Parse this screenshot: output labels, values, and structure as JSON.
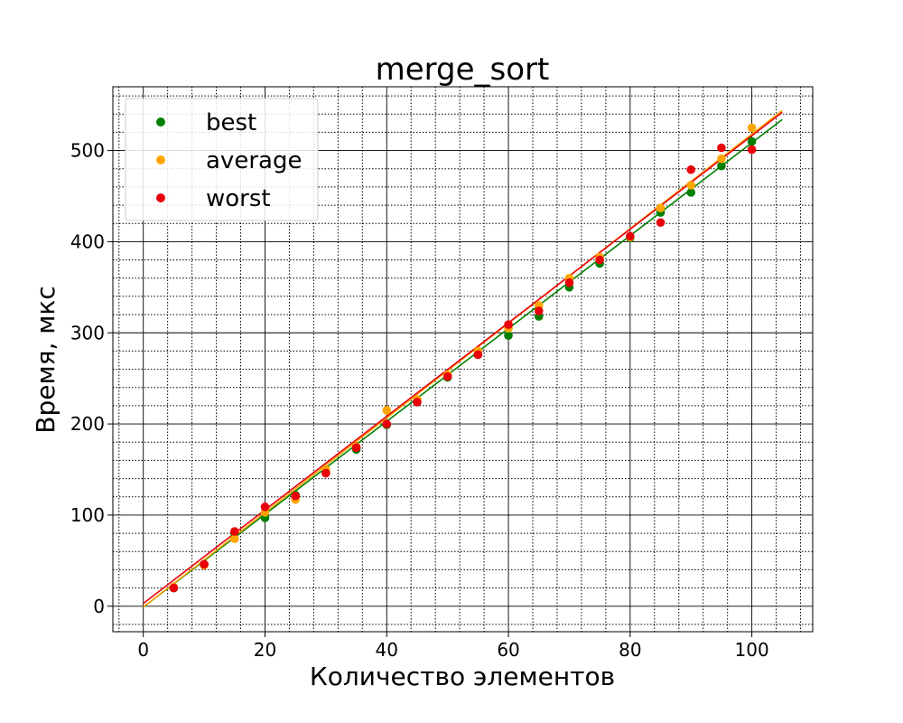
{
  "chart_data": {
    "type": "scatter",
    "title": "merge_sort",
    "xlabel": "Количество элементов",
    "ylabel": "Время, мкс",
    "xlim": [
      -5,
      110
    ],
    "ylim": [
      -28,
      570
    ],
    "xticks": [
      0,
      20,
      40,
      60,
      80,
      100
    ],
    "yticks": [
      0,
      100,
      200,
      300,
      400,
      500
    ],
    "grid": true,
    "minor_grid": true,
    "legend_position": "top-left",
    "series": [
      {
        "name": "best",
        "color": "#008000",
        "x": [
          5,
          10,
          15,
          20,
          25,
          30,
          35,
          40,
          45,
          50,
          55,
          60,
          65,
          70,
          75,
          80,
          85,
          90,
          95,
          100
        ],
        "y": [
          20,
          46,
          80,
          97,
          122,
          147,
          172,
          199,
          224,
          251,
          276,
          297,
          318,
          350,
          376,
          404,
          432,
          454,
          483,
          510
        ],
        "fit": [
          [
            0,
            -1
          ],
          [
            105,
            534
          ]
        ]
      },
      {
        "name": "average",
        "color": "#FFA500",
        "x": [
          5,
          10,
          15,
          20,
          25,
          30,
          35,
          40,
          45,
          50,
          55,
          60,
          65,
          70,
          75,
          80,
          85,
          90,
          95,
          100
        ],
        "y": [
          21,
          45,
          74,
          103,
          117,
          150,
          175,
          215,
          227,
          254,
          280,
          305,
          330,
          360,
          383,
          405,
          437,
          462,
          491,
          525
        ],
        "fit": [
          [
            0,
            -1
          ],
          [
            105,
            544
          ]
        ]
      },
      {
        "name": "worst",
        "color": "#E8000B",
        "x": [
          5,
          10,
          15,
          20,
          25,
          30,
          35,
          40,
          45,
          50,
          55,
          60,
          65,
          70,
          75,
          80,
          85,
          90,
          95,
          100
        ],
        "y": [
          20,
          46,
          82,
          109,
          121,
          146,
          174,
          200,
          224,
          252,
          276,
          309,
          324,
          355,
          380,
          406,
          421,
          479,
          503,
          501
        ],
        "fit": [
          [
            0,
            3
          ],
          [
            105,
            542
          ]
        ]
      }
    ]
  }
}
